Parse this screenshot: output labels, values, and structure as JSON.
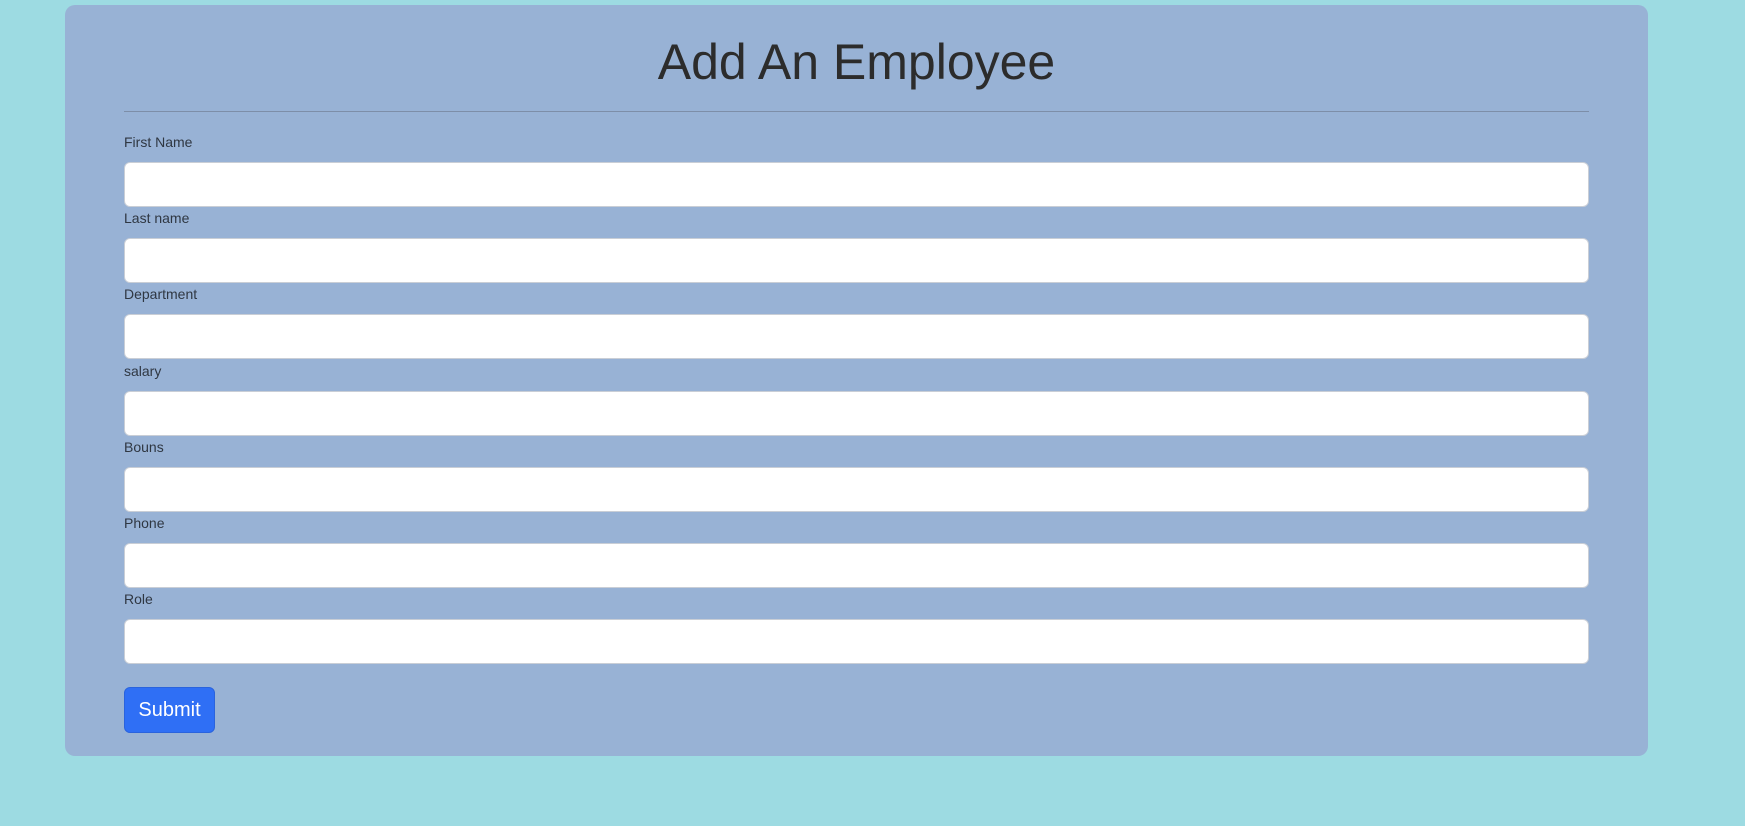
{
  "form": {
    "title": "Add An Employee",
    "fields": [
      {
        "label": "First Name",
        "value": "",
        "placeholder": ""
      },
      {
        "label": "Last name",
        "value": "",
        "placeholder": ""
      },
      {
        "label": "Department",
        "value": "",
        "placeholder": ""
      },
      {
        "label": "salary",
        "value": "",
        "placeholder": ""
      },
      {
        "label": "Bouns",
        "value": "",
        "placeholder": ""
      },
      {
        "label": "Phone",
        "value": "",
        "placeholder": ""
      },
      {
        "label": "Role",
        "value": "",
        "placeholder": ""
      }
    ],
    "submit_label": "Submit"
  },
  "colors": {
    "page_background": "#9ddbe2",
    "card_background": "#98b2d5",
    "submit_button": "#2f6ff5"
  }
}
